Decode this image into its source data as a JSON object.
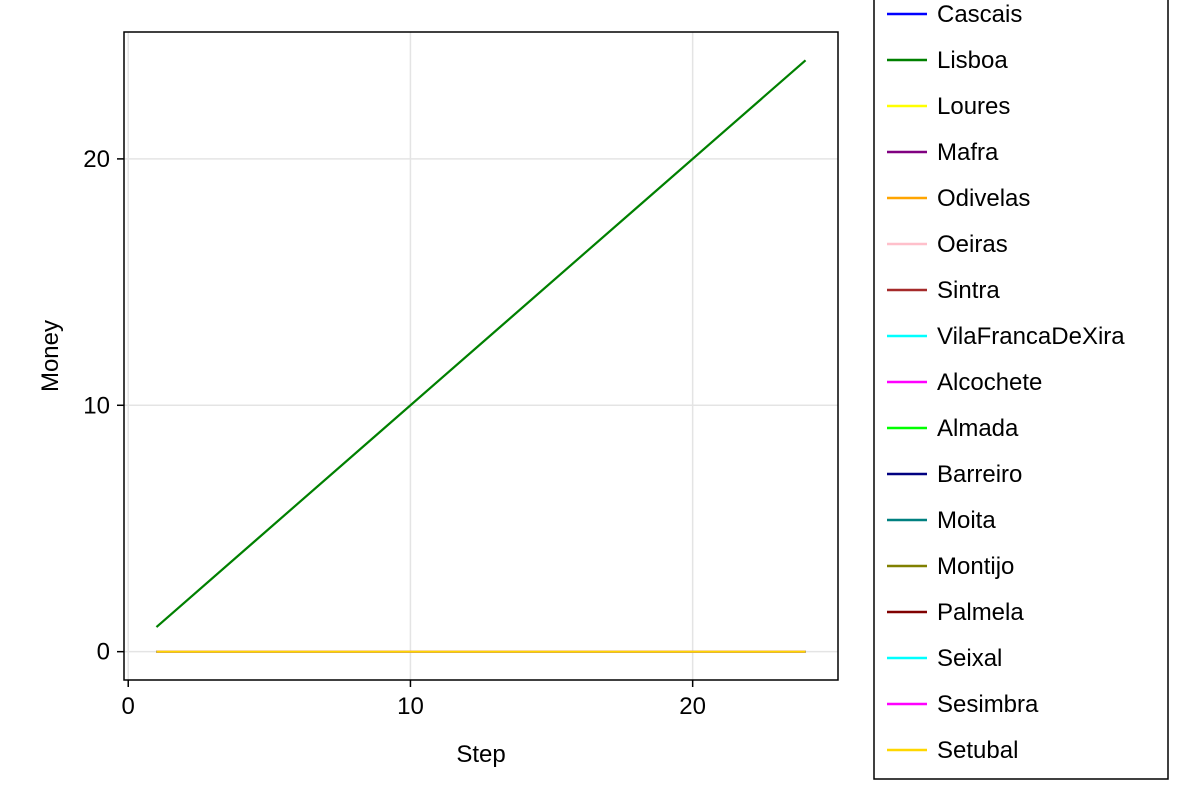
{
  "chart_data": {
    "type": "line",
    "title": "",
    "xlabel": "Step",
    "ylabel": "Money",
    "xlim": [
      -0.15,
      25.15
    ],
    "ylim": [
      -1.15,
      25.15
    ],
    "xticks": [
      0,
      10,
      20
    ],
    "yticks": [
      0,
      10,
      20
    ],
    "grid": true,
    "legend": "outside-right",
    "x": [
      1,
      24
    ],
    "series": [
      {
        "name": "Cascais",
        "color": "#0000ff",
        "values": [
          0,
          0
        ]
      },
      {
        "name": "Lisboa",
        "color": "#008000",
        "values": [
          1,
          24
        ]
      },
      {
        "name": "Loures",
        "color": "#ffff00",
        "values": [
          0,
          0
        ]
      },
      {
        "name": "Mafra",
        "color": "#800080",
        "values": [
          0,
          0
        ]
      },
      {
        "name": "Odivelas",
        "color": "#ffa500",
        "values": [
          0,
          0
        ]
      },
      {
        "name": "Oeiras",
        "color": "#ffc0cb",
        "values": [
          0,
          0
        ]
      },
      {
        "name": "Sintra",
        "color": "#a52a2a",
        "values": [
          0,
          0
        ]
      },
      {
        "name": "VilaFrancaDeXira",
        "color": "#00ffff",
        "values": [
          0,
          0
        ]
      },
      {
        "name": "Alcochete",
        "color": "#ff00ff",
        "values": [
          0,
          0
        ]
      },
      {
        "name": "Almada",
        "color": "#00ff00",
        "values": [
          0,
          0
        ]
      },
      {
        "name": "Barreiro",
        "color": "#000080",
        "values": [
          0,
          0
        ]
      },
      {
        "name": "Moita",
        "color": "#008080",
        "values": [
          0,
          0
        ]
      },
      {
        "name": "Montijo",
        "color": "#808000",
        "values": [
          0,
          0
        ]
      },
      {
        "name": "Palmela",
        "color": "#800000",
        "values": [
          0,
          0
        ]
      },
      {
        "name": "Seixal",
        "color": "#00ffff",
        "values": [
          0,
          0
        ]
      },
      {
        "name": "Sesimbra",
        "color": "#ff00ff",
        "values": [
          0,
          0
        ]
      },
      {
        "name": "Setubal",
        "color": "#ffd700",
        "values": [
          0,
          0
        ]
      }
    ]
  }
}
